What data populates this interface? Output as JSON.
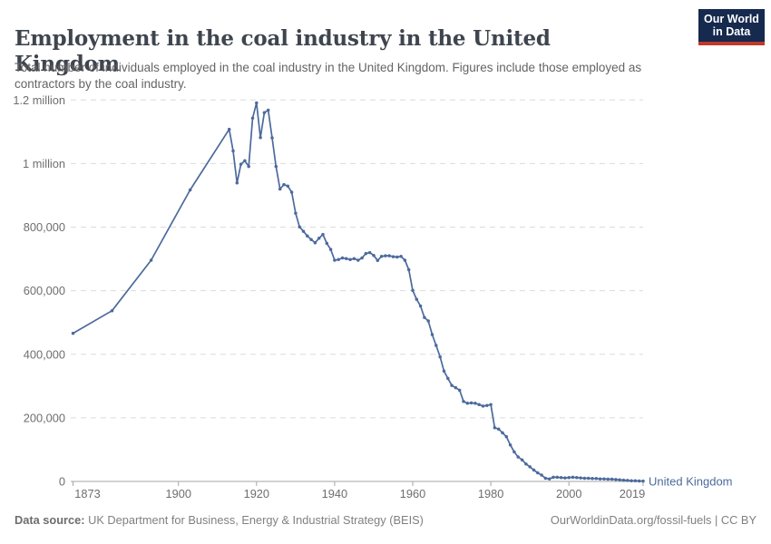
{
  "header": {
    "title": "Employment in the coal industry in the United Kingdom",
    "subtitle": "Total number of individuals employed in the coal industry in the United Kingdom. Figures include those employed as contractors by the coal industry.",
    "logo": {
      "line1": "Our World",
      "line2": "in Data",
      "bg_color": "#16294E",
      "accent_color": "#C0392B"
    }
  },
  "chart_data": {
    "type": "line",
    "title": "Employment in the coal industry in the United Kingdom",
    "xlabel": "",
    "ylabel": "",
    "xlim": [
      1873,
      2019
    ],
    "ylim": [
      0,
      1200000
    ],
    "grid": "horizontal-dashed",
    "legend_position": "end-of-line-label",
    "x_ticks": [
      {
        "year": 1873,
        "label": "1873"
      },
      {
        "year": 1900,
        "label": "1900"
      },
      {
        "year": 1920,
        "label": "1920"
      },
      {
        "year": 1940,
        "label": "1940"
      },
      {
        "year": 1960,
        "label": "1960"
      },
      {
        "year": 1980,
        "label": "1980"
      },
      {
        "year": 2000,
        "label": "2000"
      },
      {
        "year": 2019,
        "label": "2019"
      }
    ],
    "y_ticks": [
      {
        "value": 0,
        "label": "0"
      },
      {
        "value": 200000,
        "label": "200,000"
      },
      {
        "value": 400000,
        "label": "400,000"
      },
      {
        "value": 600000,
        "label": "600,000"
      },
      {
        "value": 800000,
        "label": "800,000"
      },
      {
        "value": 1000000,
        "label": "1 million"
      },
      {
        "value": 1200000,
        "label": "1.2 million"
      }
    ],
    "series": [
      {
        "name": "United Kingdom",
        "color": "#4C6A9C",
        "points": [
          [
            1873,
            466000
          ],
          [
            1883,
            537000
          ],
          [
            1893,
            696000
          ],
          [
            1903,
            917000
          ],
          [
            1913,
            1108000
          ],
          [
            1914,
            1040000
          ],
          [
            1915,
            939000
          ],
          [
            1916,
            998000
          ],
          [
            1917,
            1009000
          ],
          [
            1918,
            991000
          ],
          [
            1919,
            1143000
          ],
          [
            1920,
            1191000
          ],
          [
            1921,
            1082000
          ],
          [
            1922,
            1160000
          ],
          [
            1923,
            1168000
          ],
          [
            1924,
            1081000
          ],
          [
            1925,
            991000
          ],
          [
            1926,
            920000
          ],
          [
            1927,
            934000
          ],
          [
            1928,
            929000
          ],
          [
            1929,
            910000
          ],
          [
            1930,
            844000
          ],
          [
            1931,
            801000
          ],
          [
            1932,
            787000
          ],
          [
            1933,
            772000
          ],
          [
            1934,
            761000
          ],
          [
            1935,
            751000
          ],
          [
            1936,
            765000
          ],
          [
            1937,
            777000
          ],
          [
            1938,
            749000
          ],
          [
            1939,
            730000
          ],
          [
            1940,
            696000
          ],
          [
            1941,
            698000
          ],
          [
            1942,
            703000
          ],
          [
            1943,
            701000
          ],
          [
            1944,
            698000
          ],
          [
            1945,
            701000
          ],
          [
            1946,
            696000
          ],
          [
            1947,
            703000
          ],
          [
            1948,
            717000
          ],
          [
            1949,
            720000
          ],
          [
            1950,
            711000
          ],
          [
            1951,
            695000
          ],
          [
            1952,
            708000
          ],
          [
            1953,
            710000
          ],
          [
            1954,
            710000
          ],
          [
            1955,
            707000
          ],
          [
            1956,
            706000
          ],
          [
            1957,
            708000
          ],
          [
            1958,
            696000
          ],
          [
            1959,
            666000
          ],
          [
            1960,
            601000
          ],
          [
            1961,
            573000
          ],
          [
            1962,
            552000
          ],
          [
            1963,
            516000
          ],
          [
            1964,
            505000
          ],
          [
            1965,
            462000
          ],
          [
            1966,
            428000
          ],
          [
            1967,
            392000
          ],
          [
            1968,
            347000
          ],
          [
            1969,
            324000
          ],
          [
            1970,
            302000
          ],
          [
            1971,
            295000
          ],
          [
            1972,
            287000
          ],
          [
            1973,
            252000
          ],
          [
            1974,
            246000
          ],
          [
            1975,
            247000
          ],
          [
            1976,
            246000
          ],
          [
            1977,
            242000
          ],
          [
            1978,
            237000
          ],
          [
            1979,
            239000
          ],
          [
            1980,
            242000
          ],
          [
            1981,
            169000
          ],
          [
            1982,
            165000
          ],
          [
            1983,
            153000
          ],
          [
            1984,
            141000
          ],
          [
            1985,
            115000
          ],
          [
            1986,
            93000
          ],
          [
            1987,
            77000
          ],
          [
            1988,
            68000
          ],
          [
            1989,
            55000
          ],
          [
            1990,
            46000
          ],
          [
            1991,
            36000
          ],
          [
            1992,
            27000
          ],
          [
            1993,
            20000
          ],
          [
            1994,
            10000
          ],
          [
            1995,
            8000
          ],
          [
            1996,
            13000
          ],
          [
            1997,
            13000
          ],
          [
            1998,
            12000
          ],
          [
            1999,
            11000
          ],
          [
            2000,
            12000
          ],
          [
            2001,
            13000
          ],
          [
            2002,
            12000
          ],
          [
            2003,
            11000
          ],
          [
            2004,
            10000
          ],
          [
            2005,
            10000
          ],
          [
            2006,
            9000
          ],
          [
            2007,
            9000
          ],
          [
            2008,
            8000
          ],
          [
            2009,
            8000
          ],
          [
            2010,
            7000
          ],
          [
            2011,
            7000
          ],
          [
            2012,
            6000
          ],
          [
            2013,
            5000
          ],
          [
            2014,
            4000
          ],
          [
            2015,
            3000
          ],
          [
            2016,
            2000
          ],
          [
            2017,
            2000
          ],
          [
            2018,
            1500
          ],
          [
            2019,
            1000
          ]
        ]
      }
    ],
    "entity_label": "United Kingdom"
  },
  "footer": {
    "source_label": "Data source:",
    "source_text": " UK Department for Business, Energy & Industrial Strategy (BEIS)",
    "attribution": "OurWorldinData.org/fossil-fuels | CC BY"
  },
  "colors": {
    "line": "#4C6A9C",
    "gridline": "#DCDCDC",
    "axis": "#A5A5A5",
    "tick_text": "#6e6e6e",
    "title_text": "#3E454E",
    "subtitle_text": "#646464",
    "footer_text": "#808080"
  }
}
